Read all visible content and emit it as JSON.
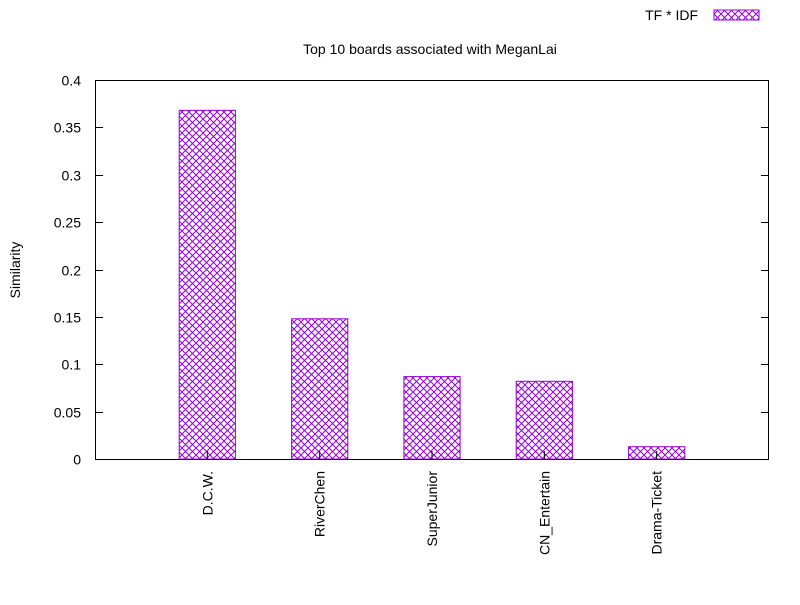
{
  "chart_data": {
    "type": "bar",
    "title": "Top 10 boards associated with MeganLai",
    "xlabel": "",
    "ylabel": "Similarity",
    "categories": [
      "D.C.W.",
      "RiverChen",
      "SuperJunior",
      "CN_Entertain",
      "Drama-Ticket"
    ],
    "series": [
      {
        "name": "TF * IDF",
        "values": [
          0.368,
          0.148,
          0.087,
          0.082,
          0.013
        ]
      }
    ],
    "ylim": [
      0,
      0.4
    ],
    "yticks": [
      "0",
      "0.05",
      "0.1",
      "0.15",
      "0.2",
      "0.25",
      "0.3",
      "0.35",
      "0.4"
    ],
    "grid": false,
    "legend_position": "top-right",
    "colors": {
      "bar": "#9400d3",
      "axis": "#000000"
    }
  }
}
